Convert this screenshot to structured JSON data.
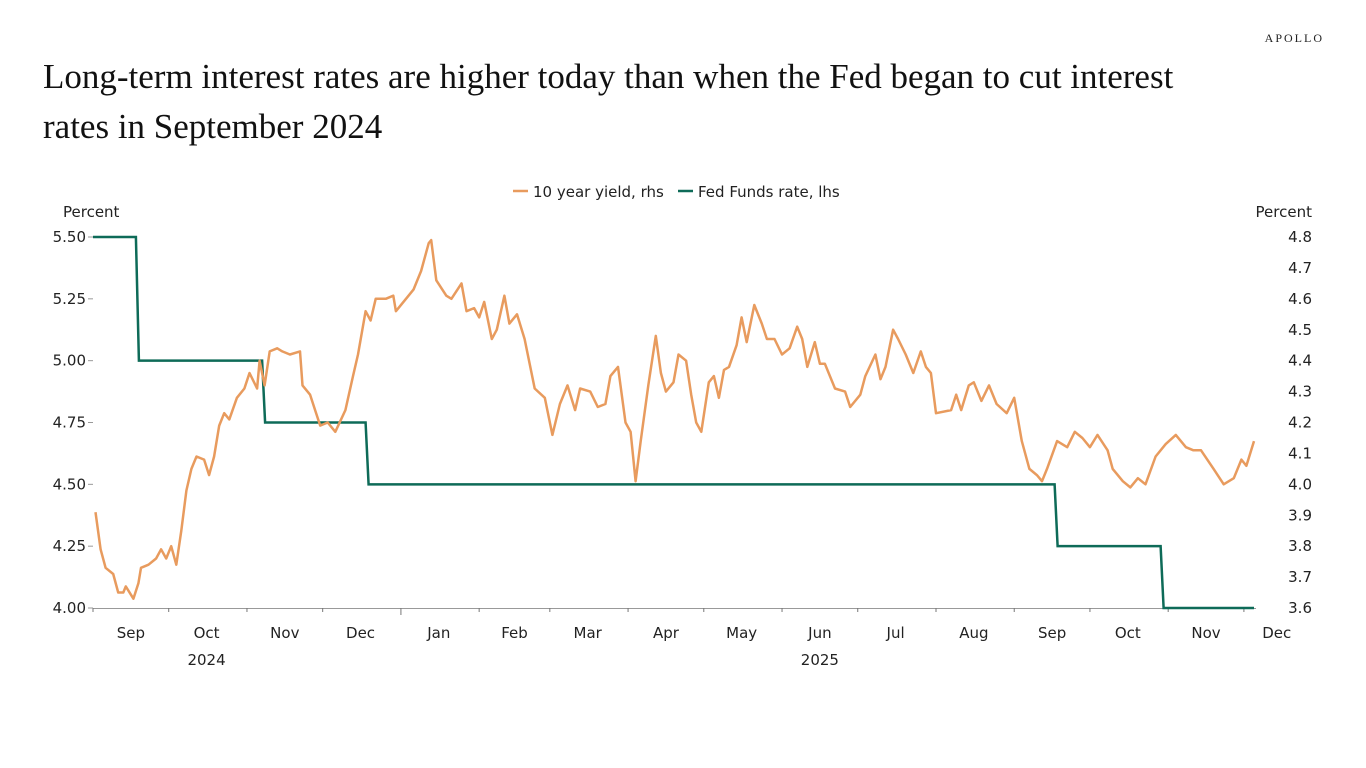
{
  "logo": "APOLLO",
  "title": "Long-term interest rates are higher today than when the Fed began to cut interest rates in September 2024",
  "chart_data": {
    "type": "line",
    "title": "Long-term interest rates are higher today than when the Fed began to cut interest rates in September 2024",
    "y_left_label": "Percent",
    "y_right_label": "Percent",
    "y_left_range": [
      4.0,
      5.5
    ],
    "y_left_ticks": [
      "4.00",
      "4.25",
      "4.50",
      "4.75",
      "5.00",
      "5.25",
      "5.50"
    ],
    "y_right_range": [
      3.6,
      4.8
    ],
    "y_right_ticks": [
      "3.6",
      "3.7",
      "3.8",
      "3.9",
      "4.0",
      "4.1",
      "4.2",
      "4.3",
      "4.4",
      "4.5",
      "4.6",
      "4.7",
      "4.8"
    ],
    "x_range": [
      "2024-09-01",
      "2025-12-05"
    ],
    "x_month_labels": [
      {
        "label": "Sep",
        "date": "2024-09-16"
      },
      {
        "label": "Oct",
        "date": "2024-10-16"
      },
      {
        "label": "Nov",
        "date": "2024-11-16"
      },
      {
        "label": "Dec",
        "date": "2024-12-16"
      },
      {
        "label": "Jan",
        "date": "2025-01-16"
      },
      {
        "label": "Feb",
        "date": "2025-02-15"
      },
      {
        "label": "Mar",
        "date": "2025-03-16"
      },
      {
        "label": "Apr",
        "date": "2025-04-16"
      },
      {
        "label": "May",
        "date": "2025-05-16"
      },
      {
        "label": "Jun",
        "date": "2025-06-16"
      },
      {
        "label": "Jul",
        "date": "2025-07-16"
      },
      {
        "label": "Aug",
        "date": "2025-08-16"
      },
      {
        "label": "Sep",
        "date": "2025-09-16"
      },
      {
        "label": "Oct",
        "date": "2025-10-16"
      },
      {
        "label": "Nov",
        "date": "2025-11-16"
      },
      {
        "label": "Dec",
        "date": "2025-12-14"
      }
    ],
    "x_year_labels": [
      {
        "label": "2024",
        "date": "2024-10-16"
      },
      {
        "label": "2025",
        "date": "2025-06-16"
      }
    ],
    "legend_position": "top-center",
    "grid": false,
    "series": [
      {
        "name": "10 year yield, rhs",
        "axis": "right",
        "color": "#E89B5E",
        "points": [
          [
            "2024-09-02",
            3.91
          ],
          [
            "2024-09-04",
            3.79
          ],
          [
            "2024-09-06",
            3.73
          ],
          [
            "2024-09-09",
            3.71
          ],
          [
            "2024-09-11",
            3.65
          ],
          [
            "2024-09-13",
            3.65
          ],
          [
            "2024-09-14",
            3.67
          ],
          [
            "2024-09-17",
            3.63
          ],
          [
            "2024-09-19",
            3.68
          ],
          [
            "2024-09-20",
            3.73
          ],
          [
            "2024-09-23",
            3.74
          ],
          [
            "2024-09-26",
            3.76
          ],
          [
            "2024-09-28",
            3.79
          ],
          [
            "2024-09-30",
            3.76
          ],
          [
            "2024-10-02",
            3.8
          ],
          [
            "2024-10-04",
            3.74
          ],
          [
            "2024-10-06",
            3.85
          ],
          [
            "2024-10-08",
            3.98
          ],
          [
            "2024-10-10",
            4.05
          ],
          [
            "2024-10-12",
            4.09
          ],
          [
            "2024-10-15",
            4.08
          ],
          [
            "2024-10-17",
            4.03
          ],
          [
            "2024-10-19",
            4.09
          ],
          [
            "2024-10-21",
            4.19
          ],
          [
            "2024-10-23",
            4.23
          ],
          [
            "2024-10-25",
            4.21
          ],
          [
            "2024-10-28",
            4.28
          ],
          [
            "2024-10-31",
            4.31
          ],
          [
            "2024-11-02",
            4.36
          ],
          [
            "2024-11-05",
            4.31
          ],
          [
            "2024-11-06",
            4.4
          ],
          [
            "2024-11-08",
            4.32
          ],
          [
            "2024-11-10",
            4.43
          ],
          [
            "2024-11-13",
            4.44
          ],
          [
            "2024-11-15",
            4.43
          ],
          [
            "2024-11-18",
            4.42
          ],
          [
            "2024-11-22",
            4.43
          ],
          [
            "2024-11-23",
            4.32
          ],
          [
            "2024-11-26",
            4.29
          ],
          [
            "2024-11-28",
            4.24
          ],
          [
            "2024-11-30",
            4.19
          ],
          [
            "2024-12-03",
            4.2
          ],
          [
            "2024-12-06",
            4.17
          ],
          [
            "2024-12-10",
            4.24
          ],
          [
            "2024-12-13",
            4.35
          ],
          [
            "2024-12-15",
            4.42
          ],
          [
            "2024-12-18",
            4.56
          ],
          [
            "2024-12-20",
            4.53
          ],
          [
            "2024-12-22",
            4.6
          ],
          [
            "2024-12-26",
            4.6
          ],
          [
            "2024-12-29",
            4.61
          ],
          [
            "2024-12-30",
            4.56
          ],
          [
            "2025-01-03",
            4.6
          ],
          [
            "2025-01-06",
            4.63
          ],
          [
            "2025-01-09",
            4.69
          ],
          [
            "2025-01-12",
            4.78
          ],
          [
            "2025-01-13",
            4.79
          ],
          [
            "2025-01-15",
            4.66
          ],
          [
            "2025-01-19",
            4.61
          ],
          [
            "2025-01-21",
            4.6
          ],
          [
            "2025-01-25",
            4.65
          ],
          [
            "2025-01-27",
            4.56
          ],
          [
            "2025-01-30",
            4.57
          ],
          [
            "2025-02-01",
            4.54
          ],
          [
            "2025-02-03",
            4.59
          ],
          [
            "2025-02-06",
            4.47
          ],
          [
            "2025-02-08",
            4.5
          ],
          [
            "2025-02-11",
            4.61
          ],
          [
            "2025-02-13",
            4.52
          ],
          [
            "2025-02-16",
            4.55
          ],
          [
            "2025-02-19",
            4.47
          ],
          [
            "2025-02-23",
            4.31
          ],
          [
            "2025-02-27",
            4.28
          ],
          [
            "2025-03-02",
            4.16
          ],
          [
            "2025-03-05",
            4.26
          ],
          [
            "2025-03-08",
            4.32
          ],
          [
            "2025-03-11",
            4.24
          ],
          [
            "2025-03-13",
            4.31
          ],
          [
            "2025-03-17",
            4.3
          ],
          [
            "2025-03-20",
            4.25
          ],
          [
            "2025-03-23",
            4.26
          ],
          [
            "2025-03-25",
            4.35
          ],
          [
            "2025-03-28",
            4.38
          ],
          [
            "2025-03-31",
            4.2
          ],
          [
            "2025-04-02",
            4.17
          ],
          [
            "2025-04-04",
            4.01
          ],
          [
            "2025-04-06",
            4.14
          ],
          [
            "2025-04-09",
            4.32
          ],
          [
            "2025-04-12",
            4.48
          ],
          [
            "2025-04-14",
            4.36
          ],
          [
            "2025-04-16",
            4.3
          ],
          [
            "2025-04-19",
            4.33
          ],
          [
            "2025-04-21",
            4.42
          ],
          [
            "2025-04-24",
            4.4
          ],
          [
            "2025-04-26",
            4.29
          ],
          [
            "2025-04-28",
            4.2
          ],
          [
            "2025-04-30",
            4.17
          ],
          [
            "2025-05-03",
            4.33
          ],
          [
            "2025-05-05",
            4.35
          ],
          [
            "2025-05-07",
            4.28
          ],
          [
            "2025-05-09",
            4.37
          ],
          [
            "2025-05-11",
            4.38
          ],
          [
            "2025-05-14",
            4.45
          ],
          [
            "2025-05-16",
            4.54
          ],
          [
            "2025-05-18",
            4.46
          ],
          [
            "2025-05-21",
            4.58
          ],
          [
            "2025-05-24",
            4.52
          ],
          [
            "2025-05-26",
            4.47
          ],
          [
            "2025-05-29",
            4.47
          ],
          [
            "2025-06-01",
            4.42
          ],
          [
            "2025-06-04",
            4.44
          ],
          [
            "2025-06-07",
            4.51
          ],
          [
            "2025-06-09",
            4.47
          ],
          [
            "2025-06-11",
            4.38
          ],
          [
            "2025-06-14",
            4.46
          ],
          [
            "2025-06-16",
            4.39
          ],
          [
            "2025-06-18",
            4.39
          ],
          [
            "2025-06-22",
            4.31
          ],
          [
            "2025-06-26",
            4.3
          ],
          [
            "2025-06-28",
            4.25
          ],
          [
            "2025-07-02",
            4.29
          ],
          [
            "2025-07-04",
            4.35
          ],
          [
            "2025-07-08",
            4.42
          ],
          [
            "2025-07-10",
            4.34
          ],
          [
            "2025-07-12",
            4.38
          ],
          [
            "2025-07-15",
            4.5
          ],
          [
            "2025-07-17",
            4.47
          ],
          [
            "2025-07-20",
            4.42
          ],
          [
            "2025-07-23",
            4.36
          ],
          [
            "2025-07-26",
            4.43
          ],
          [
            "2025-07-28",
            4.38
          ],
          [
            "2025-07-30",
            4.36
          ],
          [
            "2025-08-01",
            4.23
          ],
          [
            "2025-08-07",
            4.24
          ],
          [
            "2025-08-09",
            4.29
          ],
          [
            "2025-08-11",
            4.24
          ],
          [
            "2025-08-14",
            4.32
          ],
          [
            "2025-08-16",
            4.33
          ],
          [
            "2025-08-19",
            4.27
          ],
          [
            "2025-08-22",
            4.32
          ],
          [
            "2025-08-25",
            4.26
          ],
          [
            "2025-08-29",
            4.23
          ],
          [
            "2025-09-01",
            4.28
          ],
          [
            "2025-09-04",
            4.14
          ],
          [
            "2025-09-07",
            4.05
          ],
          [
            "2025-09-10",
            4.03
          ],
          [
            "2025-09-12",
            4.01
          ],
          [
            "2025-09-14",
            4.05
          ],
          [
            "2025-09-18",
            4.14
          ],
          [
            "2025-09-22",
            4.12
          ],
          [
            "2025-09-25",
            4.17
          ],
          [
            "2025-09-28",
            4.15
          ],
          [
            "2025-10-01",
            4.12
          ],
          [
            "2025-10-04",
            4.16
          ],
          [
            "2025-10-08",
            4.11
          ],
          [
            "2025-10-10",
            4.05
          ],
          [
            "2025-10-14",
            4.01
          ],
          [
            "2025-10-17",
            3.99
          ],
          [
            "2025-10-20",
            4.02
          ],
          [
            "2025-10-23",
            4.0
          ],
          [
            "2025-10-27",
            4.09
          ],
          [
            "2025-10-31",
            4.13
          ],
          [
            "2025-11-04",
            4.16
          ],
          [
            "2025-11-08",
            4.12
          ],
          [
            "2025-11-11",
            4.11
          ],
          [
            "2025-11-14",
            4.11
          ],
          [
            "2025-11-19",
            4.05
          ],
          [
            "2025-11-23",
            4.0
          ],
          [
            "2025-11-27",
            4.02
          ],
          [
            "2025-11-30",
            4.08
          ],
          [
            "2025-12-02",
            4.06
          ],
          [
            "2025-12-05",
            4.14
          ]
        ]
      },
      {
        "name": "Fed Funds rate, lhs",
        "axis": "left",
        "color": "#0E6B58",
        "step_points": [
          [
            "2024-09-01",
            5.5
          ],
          [
            "2024-09-18",
            5.0
          ],
          [
            "2024-11-07",
            4.75
          ],
          [
            "2024-12-18",
            4.5
          ],
          [
            "2025-09-17",
            4.25
          ],
          [
            "2025-10-29",
            4.0
          ],
          [
            "2025-12-05",
            4.0
          ]
        ]
      }
    ]
  }
}
